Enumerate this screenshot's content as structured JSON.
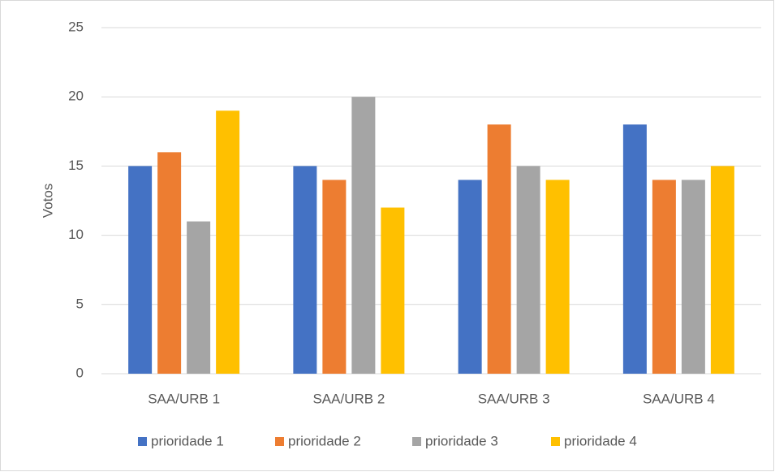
{
  "chart_data": {
    "type": "bar",
    "ylabel": "Votos",
    "categories": [
      "SAA/URB 1",
      "SAA/URB 2",
      "SAA/URB 3",
      "SAA/URB 4"
    ],
    "series": [
      {
        "name": "prioridade 1",
        "color": "#4472c4",
        "values": [
          15,
          15,
          14,
          18
        ]
      },
      {
        "name": "prioridade 2",
        "color": "#ed7d31",
        "values": [
          16,
          14,
          18,
          14
        ]
      },
      {
        "name": "prioridade 3",
        "color": "#a5a5a5",
        "values": [
          11,
          20,
          15,
          14
        ]
      },
      {
        "name": "prioridade 4",
        "color": "#ffc000",
        "values": [
          19,
          12,
          14,
          15
        ]
      }
    ],
    "ylim": [
      0,
      25
    ],
    "yticks": [
      0,
      5,
      10,
      15,
      20,
      25
    ],
    "grid": true,
    "legend": "bottom"
  }
}
